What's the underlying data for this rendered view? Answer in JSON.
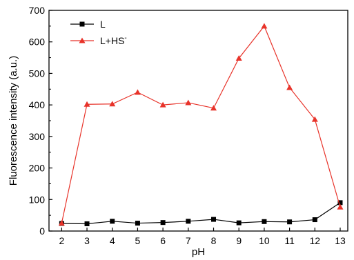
{
  "chart_data": {
    "type": "line",
    "xlabel": "pH",
    "ylabel": "Fluorescence intensity (a.u.)",
    "x": [
      2,
      3,
      4,
      5,
      6,
      7,
      8,
      9,
      10,
      11,
      12,
      13
    ],
    "xlim": [
      1.5,
      13.3
    ],
    "ylim": [
      0,
      700
    ],
    "xticks": [
      2,
      3,
      4,
      5,
      6,
      7,
      8,
      9,
      10,
      11,
      12,
      13
    ],
    "yticks": [
      0,
      100,
      200,
      300,
      400,
      500,
      600,
      700
    ],
    "grid": false,
    "legend_position": "top-left",
    "series": [
      {
        "name": "L",
        "color": "#000000",
        "marker": "square",
        "values": [
          24,
          23,
          31,
          25,
          27,
          31,
          37,
          26,
          30,
          29,
          36,
          90
        ]
      },
      {
        "name": "L+HS",
        "name_superscript": "-",
        "color": "#e8332a",
        "marker": "triangle",
        "values": [
          25,
          402,
          403,
          440,
          400,
          407,
          390,
          548,
          650,
          455,
          354,
          76
        ]
      }
    ]
  }
}
